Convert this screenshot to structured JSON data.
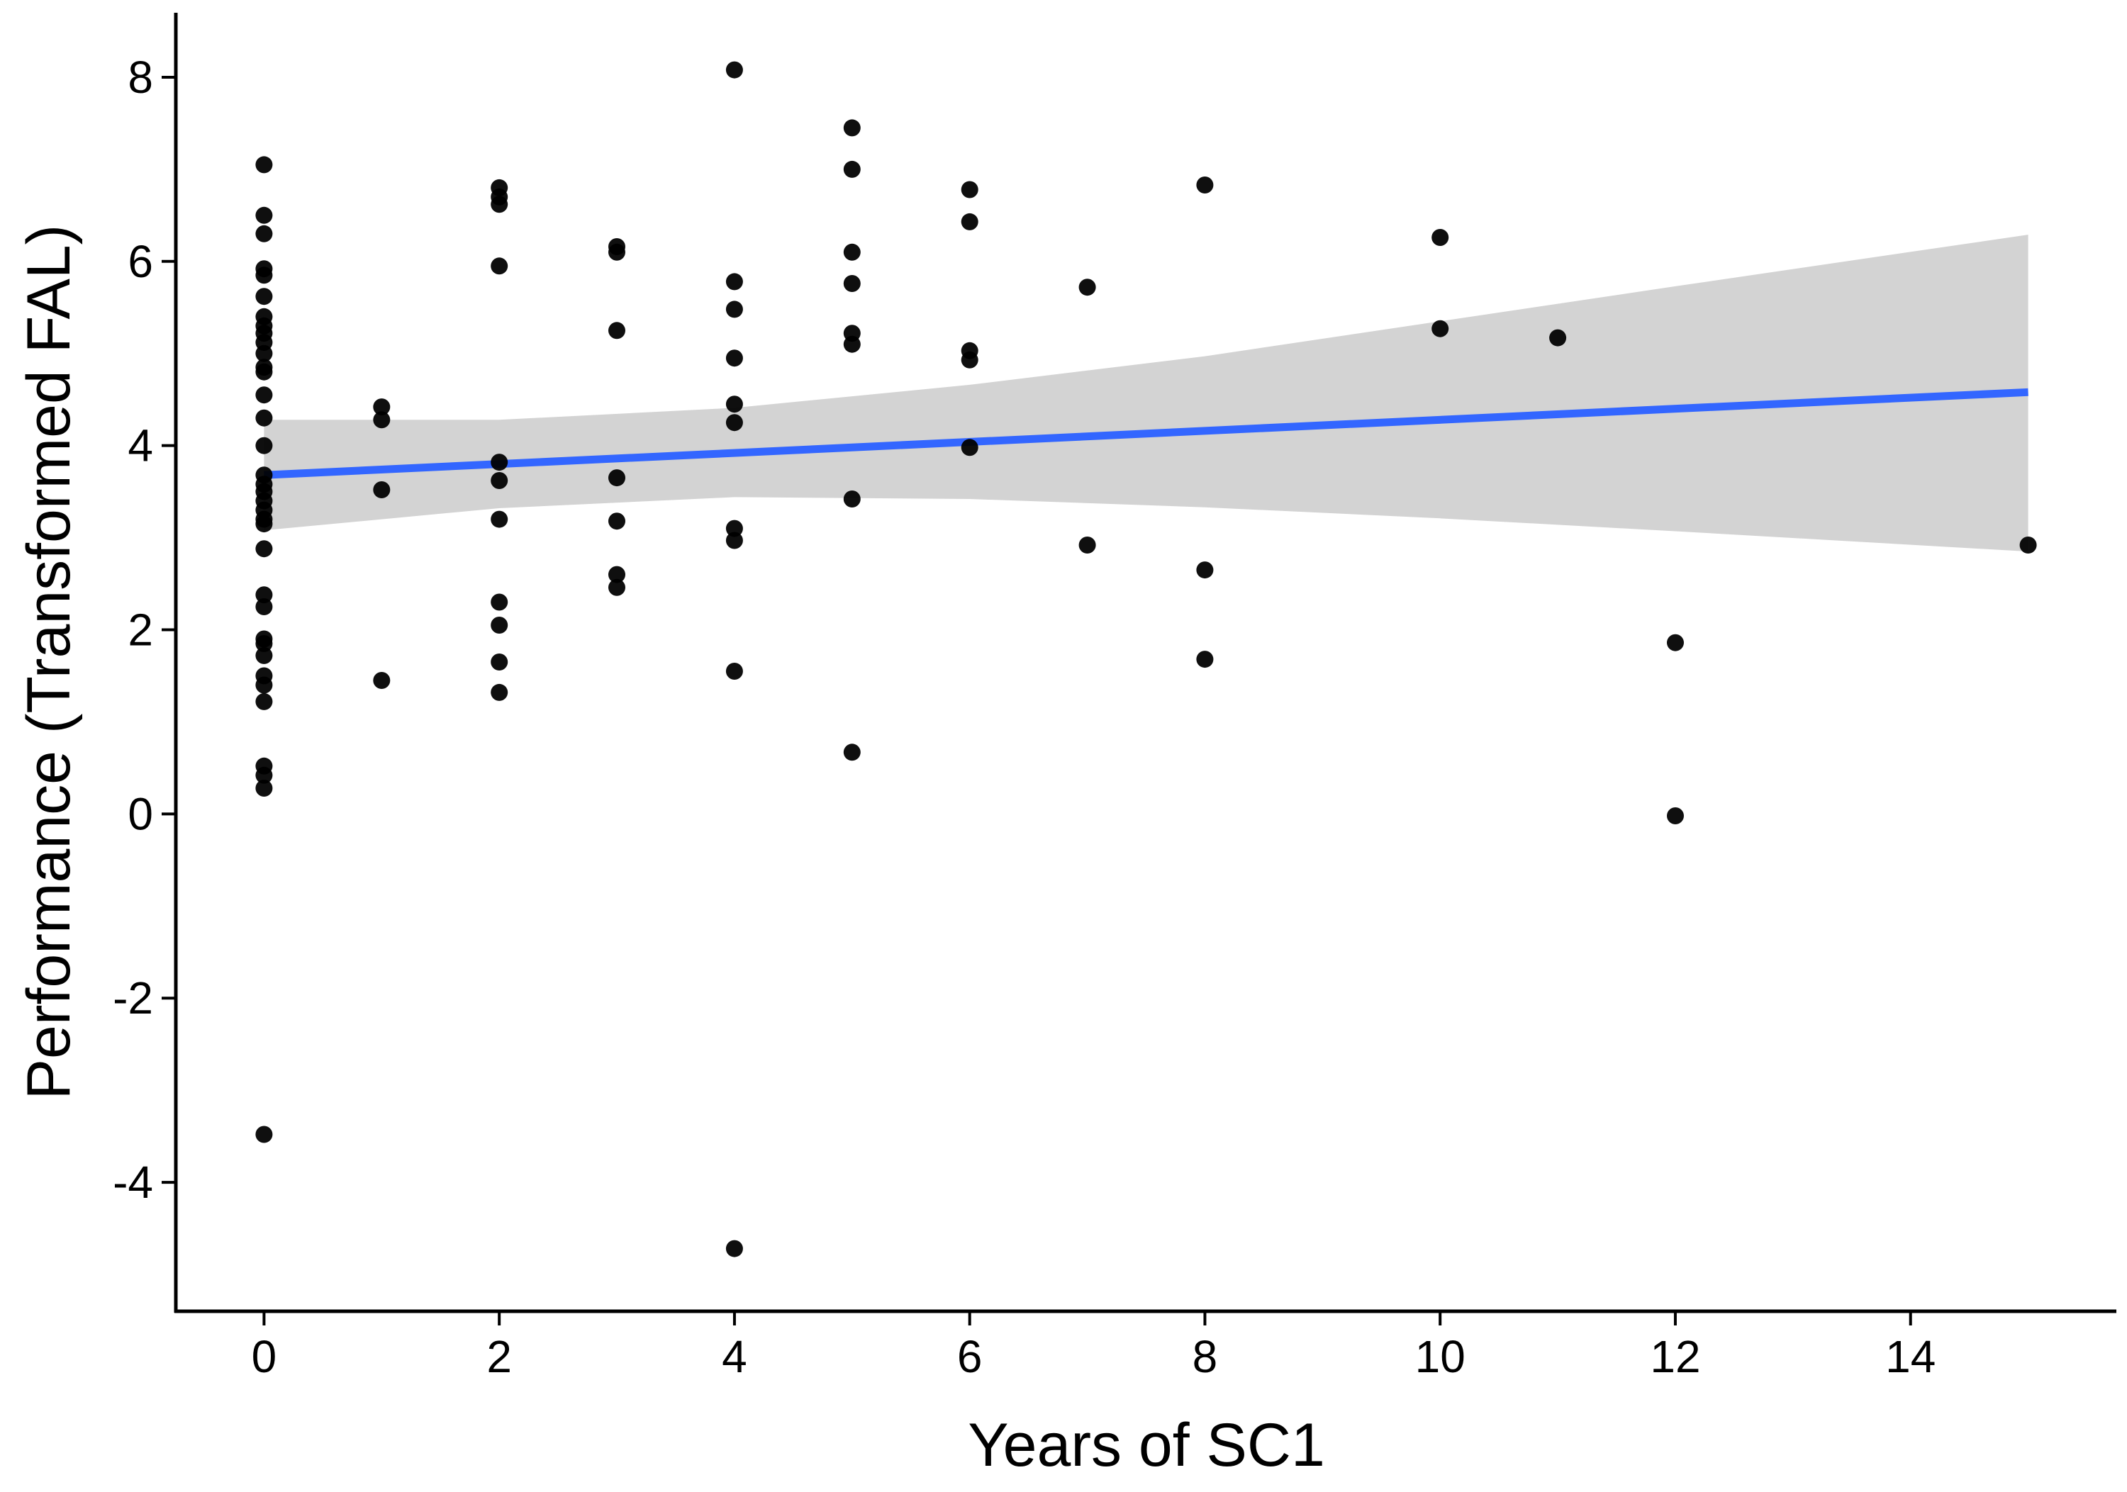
{
  "chart_data": {
    "type": "scatter",
    "xlabel": "Years of SC1",
    "ylabel": "Performance (Transformed FAL)",
    "xlim": [
      -0.75,
      15.75
    ],
    "ylim": [
      -5.4,
      8.7
    ],
    "x_ticks": [
      0,
      2,
      4,
      6,
      8,
      10,
      12,
      14
    ],
    "y_ticks": [
      -4,
      -2,
      0,
      2,
      4,
      6,
      8
    ],
    "x_tick_labels": [
      "0",
      "2",
      "4",
      "6",
      "8",
      "10",
      "12",
      "14"
    ],
    "y_tick_labels": [
      "-4",
      "-2",
      "0",
      "2",
      "4",
      "6",
      "8"
    ],
    "grid": false,
    "legend": "none",
    "series": [
      {
        "type": "scatter",
        "color": "#000000",
        "points": [
          [
            0,
            7.05
          ],
          [
            0,
            6.5
          ],
          [
            0,
            6.3
          ],
          [
            0,
            5.92
          ],
          [
            0,
            5.85
          ],
          [
            0,
            5.62
          ],
          [
            0,
            5.4
          ],
          [
            0,
            5.3
          ],
          [
            0,
            5.22
          ],
          [
            0,
            5.12
          ],
          [
            0,
            5.0
          ],
          [
            0,
            4.85
          ],
          [
            0,
            4.8
          ],
          [
            0,
            4.55
          ],
          [
            0,
            4.3
          ],
          [
            0,
            4.0
          ],
          [
            0,
            3.68
          ],
          [
            0,
            3.58
          ],
          [
            0,
            3.5
          ],
          [
            0,
            3.4
          ],
          [
            0,
            3.3
          ],
          [
            0,
            3.2
          ],
          [
            0,
            3.15
          ],
          [
            0,
            2.88
          ],
          [
            0,
            2.38
          ],
          [
            0,
            2.25
          ],
          [
            0,
            1.9
          ],
          [
            0,
            1.85
          ],
          [
            0,
            1.72
          ],
          [
            0,
            1.5
          ],
          [
            0,
            1.4
          ],
          [
            0,
            1.22
          ],
          [
            0,
            0.52
          ],
          [
            0,
            0.42
          ],
          [
            0,
            0.28
          ],
          [
            0,
            -3.48
          ],
          [
            1,
            4.42
          ],
          [
            1,
            4.28
          ],
          [
            1,
            3.52
          ],
          [
            1,
            1.45
          ],
          [
            2,
            6.8
          ],
          [
            2,
            6.7
          ],
          [
            2,
            6.62
          ],
          [
            2,
            5.95
          ],
          [
            2,
            3.82
          ],
          [
            2,
            3.62
          ],
          [
            2,
            3.2
          ],
          [
            2,
            2.3
          ],
          [
            2,
            2.05
          ],
          [
            2,
            1.65
          ],
          [
            2,
            1.32
          ],
          [
            3,
            6.16
          ],
          [
            3,
            6.1
          ],
          [
            3,
            5.25
          ],
          [
            3,
            3.65
          ],
          [
            3,
            3.18
          ],
          [
            3,
            2.6
          ],
          [
            3,
            2.46
          ],
          [
            4,
            8.08
          ],
          [
            4,
            5.78
          ],
          [
            4,
            5.48
          ],
          [
            4,
            4.95
          ],
          [
            4,
            4.45
          ],
          [
            4,
            4.25
          ],
          [
            4,
            3.1
          ],
          [
            4,
            2.97
          ],
          [
            4,
            1.55
          ],
          [
            4,
            -4.72
          ],
          [
            5,
            7.45
          ],
          [
            5,
            7.0
          ],
          [
            5,
            6.1
          ],
          [
            5,
            5.76
          ],
          [
            5,
            5.22
          ],
          [
            5,
            5.1
          ],
          [
            5,
            3.42
          ],
          [
            5,
            0.67
          ],
          [
            6,
            6.78
          ],
          [
            6,
            6.43
          ],
          [
            6,
            5.03
          ],
          [
            6,
            4.93
          ],
          [
            6,
            3.98
          ],
          [
            7,
            5.72
          ],
          [
            7,
            2.92
          ],
          [
            8,
            6.83
          ],
          [
            8,
            2.65
          ],
          [
            8,
            1.68
          ],
          [
            10,
            6.26
          ],
          [
            10,
            5.27
          ],
          [
            11,
            5.17
          ],
          [
            12,
            1.86
          ],
          [
            12,
            -0.02
          ],
          [
            15,
            2.92
          ]
        ]
      },
      {
        "type": "line",
        "color": "#3366FF",
        "x": [
          0,
          15
        ],
        "y": [
          3.68,
          4.58
        ],
        "ribbon": {
          "color": "#D3D3D3",
          "x": [
            0,
            2,
            4,
            6,
            8,
            10,
            12,
            15
          ],
          "lower": [
            3.08,
            3.32,
            3.44,
            3.42,
            3.33,
            3.21,
            3.07,
            2.85
          ],
          "upper": [
            4.28,
            4.28,
            4.41,
            4.66,
            4.97,
            5.35,
            5.73,
            6.29
          ]
        }
      }
    ]
  }
}
